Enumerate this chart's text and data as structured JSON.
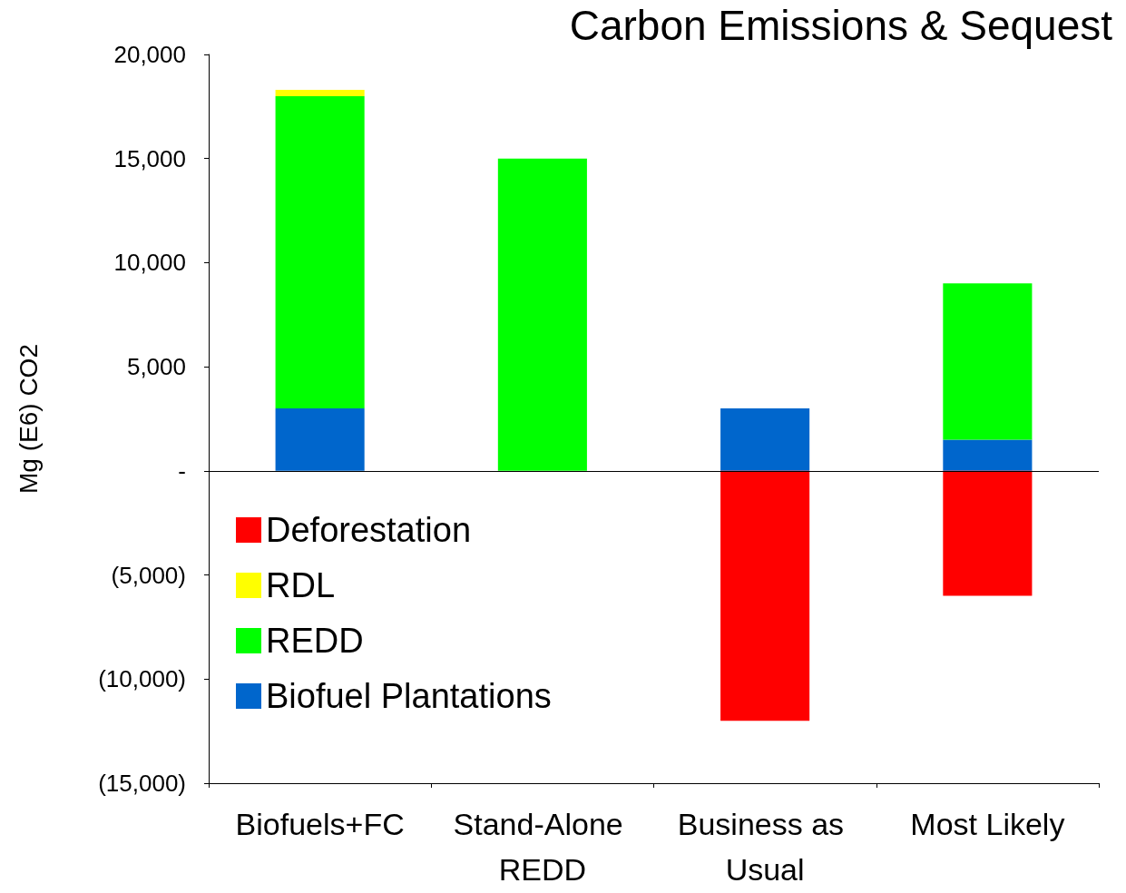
{
  "chart_data": {
    "type": "bar",
    "title": "Carbon Emissions & Sequest",
    "ylabel": "Mg (E6) CO2",
    "categories": [
      "Biofuels+FC",
      "Stand-Alone REDD",
      "Business as Usual",
      "Most Likely"
    ],
    "stacked": true,
    "series": [
      {
        "name": "Biofuel Plantations",
        "color": "#0066cc",
        "values": [
          3000,
          null,
          3000,
          1500
        ]
      },
      {
        "name": "REDD",
        "color": "#00ff00",
        "values": [
          15000,
          15000,
          null,
          7500
        ]
      },
      {
        "name": "RDL",
        "color": "#ffff00",
        "values": [
          300,
          null,
          null,
          null
        ]
      },
      {
        "name": "Deforestation",
        "color": "#ff0000",
        "values": [
          null,
          null,
          -12000,
          -6000
        ]
      }
    ],
    "ylim": [
      -15000,
      20000
    ],
    "yticks": [
      {
        "value": -15000,
        "label": "(15,000)"
      },
      {
        "value": -10000,
        "label": "(10,000)"
      },
      {
        "value": -5000,
        "label": "(5,000)"
      },
      {
        "value": 0,
        "label": "-"
      },
      {
        "value": 5000,
        "label": "5,000"
      },
      {
        "value": 10000,
        "label": "10,000"
      },
      {
        "value": 15000,
        "label": "15,000"
      },
      {
        "value": 20000,
        "label": "20,000"
      }
    ],
    "ref_lines": [
      {
        "axis": "y",
        "value": 0,
        "color": "#000000"
      }
    ],
    "grid": false,
    "legend": "left"
  }
}
